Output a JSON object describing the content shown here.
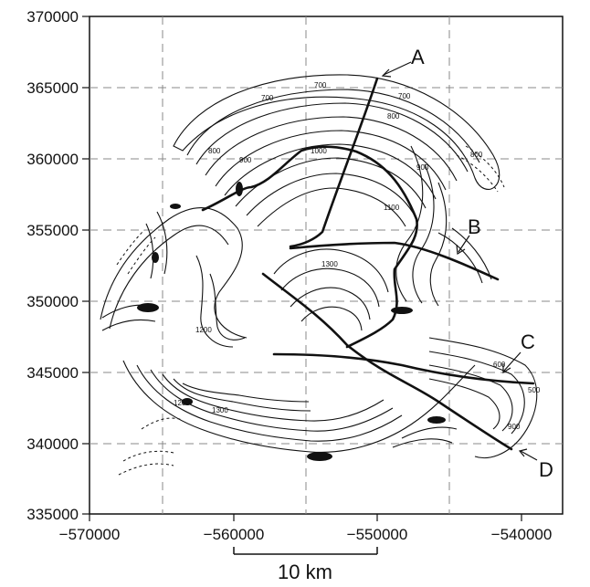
{
  "map": {
    "x_ticks": [
      "−570000",
      "−560000",
      "−550000",
      "−540000"
    ],
    "y_ticks": [
      "370000",
      "365000",
      "360000",
      "355000",
      "350000",
      "345000",
      "340000",
      "335000"
    ],
    "scale_bar_label": "10 km",
    "transect_labels": [
      "A",
      "B",
      "C",
      "D"
    ],
    "contour_labels": [
      "700",
      "700",
      "700",
      "800",
      "800",
      "800",
      "900",
      "900",
      "1000",
      "1100",
      "1200",
      "1300",
      "1300",
      "1200",
      "900",
      "600",
      "500"
    ]
  }
}
